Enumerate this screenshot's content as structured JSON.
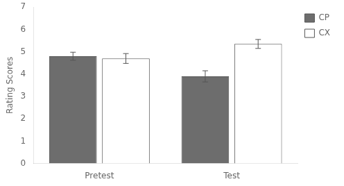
{
  "chart_data": {
    "type": "bar",
    "categories": [
      "Pretest",
      "Test"
    ],
    "series": [
      {
        "name": "CP",
        "color": "#6d6d6d",
        "values": [
          4.8,
          3.9
        ],
        "errors": [
          0.18,
          0.25
        ]
      },
      {
        "name": "CX",
        "color": "#ffffff",
        "values": [
          4.7,
          5.35
        ],
        "errors": [
          0.22,
          0.2
        ]
      }
    ],
    "ylabel": "Rating Scores",
    "ylim": [
      0,
      7
    ],
    "yticks": [
      0,
      1,
      2,
      3,
      4,
      5,
      6,
      7
    ],
    "grid": false,
    "legend": "right"
  }
}
